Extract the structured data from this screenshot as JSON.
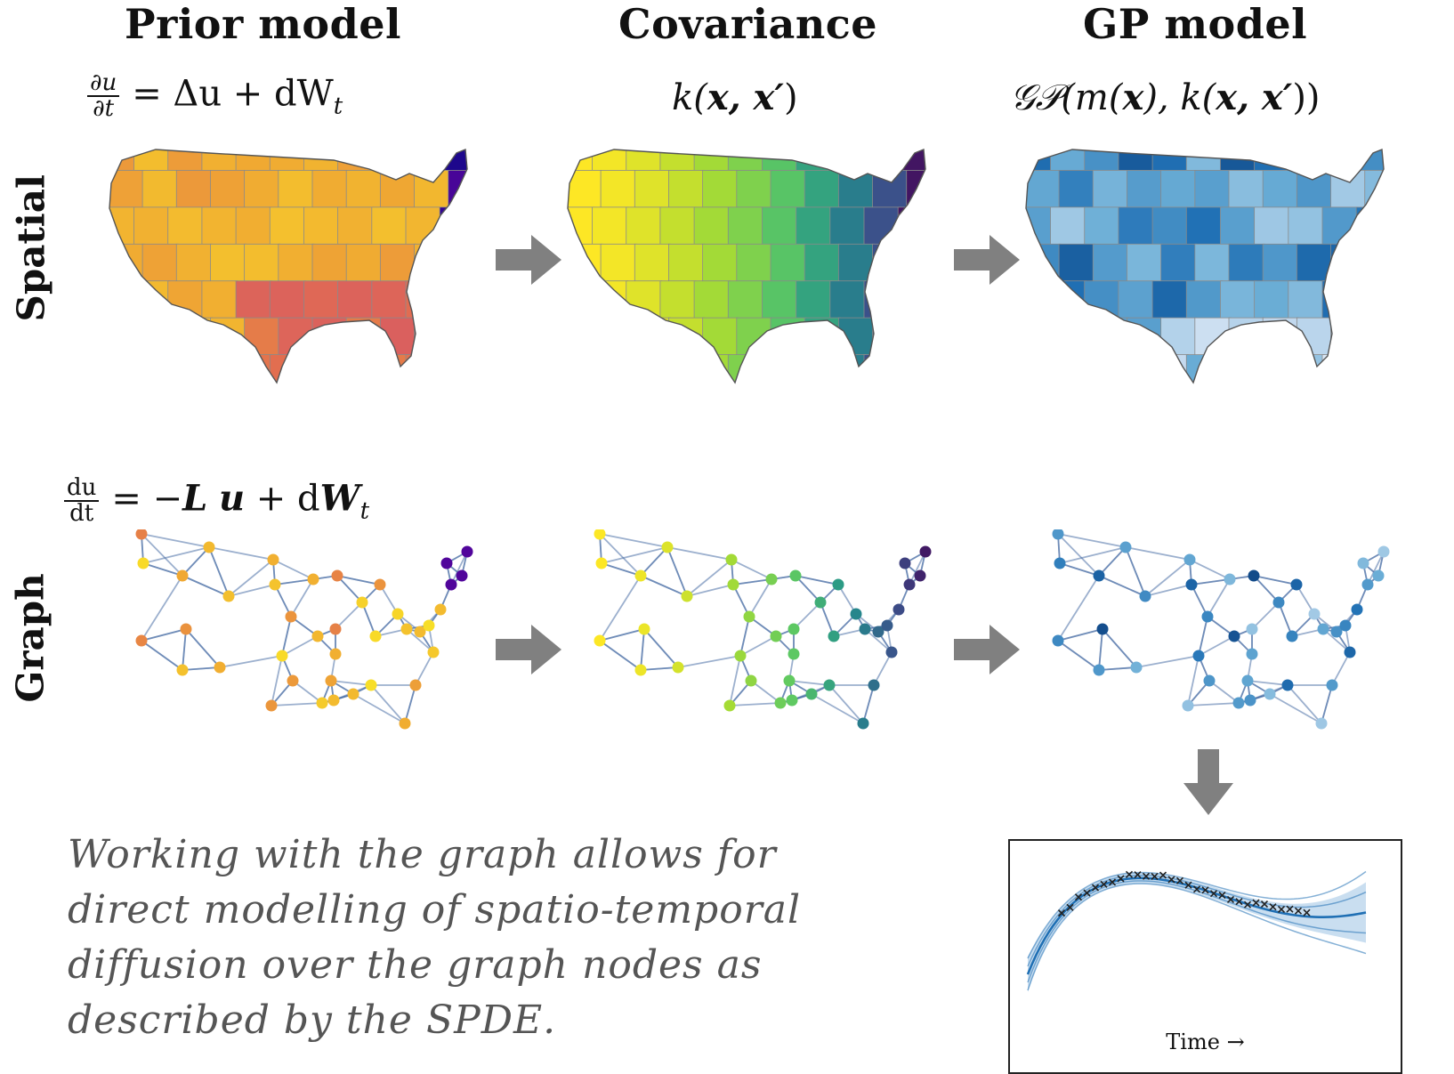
{
  "columns": {
    "prior": "Prior model",
    "covariance": "Covariance",
    "gp": "GP model"
  },
  "rows": {
    "spatial": "Spatial",
    "graph": "Graph"
  },
  "equations": {
    "spatial_prior_num": "∂u",
    "spatial_prior_den": "∂t",
    "spatial_prior_rhs": "=  Δu + dW",
    "spatial_prior_sub": "t",
    "covariance_k": "k(",
    "covariance_args": "x, x′",
    "covariance_close": ")",
    "gp_text": "𝒢𝒫(m(",
    "gp_x": "x",
    "gp_mid": "), k(",
    "gp_args": "x, x′",
    "gp_close": "))",
    "graph_prior_num": "du",
    "graph_prior_den": "dt",
    "graph_prior_eq": "=  −",
    "graph_prior_L": "L",
    "graph_prior_u": "u",
    "graph_prior_plus": "+ d",
    "graph_prior_W": "W",
    "graph_prior_sub": "t"
  },
  "description": "Working with the graph allows for direct modelling of spatio-temporal diffusion over the graph nodes as described by the SPDE.",
  "timeseries": {
    "xlabel": "Time →"
  },
  "colors": {
    "arrow": "#808080",
    "edge": "#4a6fa5",
    "obs_marker": "#222222",
    "gp_mean": "#1f6fb4",
    "gp_band": "#9cc3e4"
  }
}
